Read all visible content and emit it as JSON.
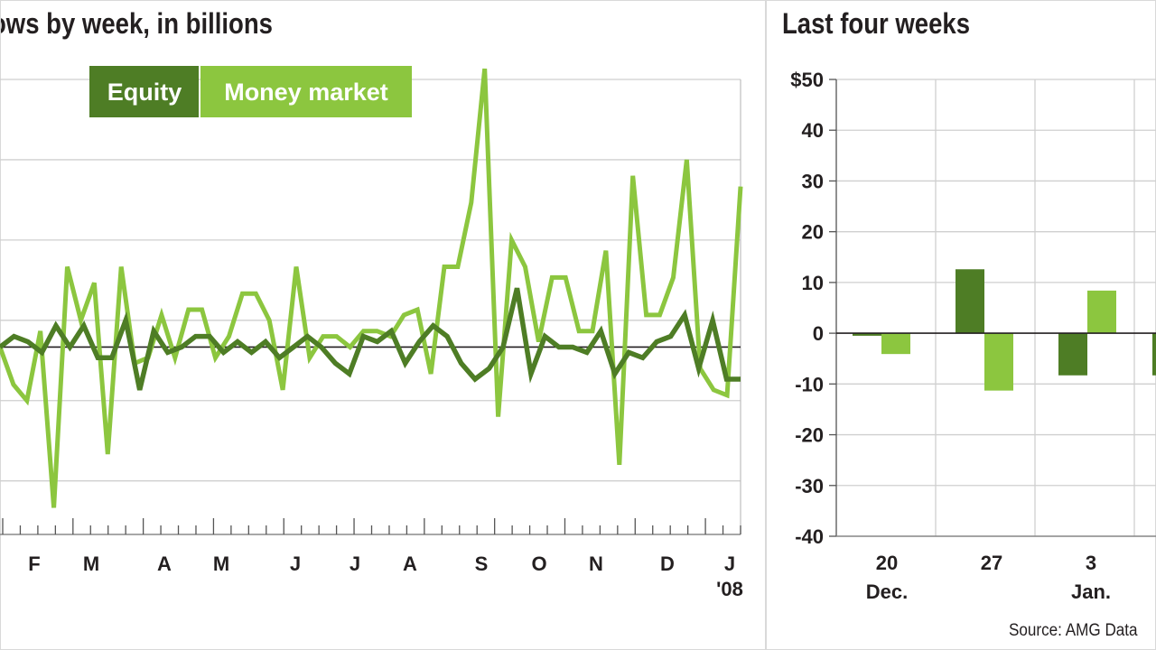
{
  "titles": {
    "left": "ows by week, in billions",
    "right": "Last four weeks"
  },
  "legend": {
    "equity": "Equity",
    "money_market": "Money market"
  },
  "source": "Source: AMG Data",
  "colors": {
    "equity": "#4e7d25",
    "money_market": "#8cc63f",
    "grid": "#cfcfcf",
    "zero": "#231f20",
    "text": "#231f20"
  },
  "chart_data": [
    {
      "type": "line",
      "title": "ows by week, in billions",
      "x_tick_labels": [
        "F",
        "M",
        "A",
        "M",
        "J",
        "J",
        "A",
        "S",
        "O",
        "N",
        "D",
        "J"
      ],
      "x_secondary_label": "'08",
      "y_tick_labels": [],
      "ylim": [
        -35,
        50
      ],
      "grid": true,
      "legend": "top-left",
      "series": [
        {
          "name": "Equity",
          "values": [
            0,
            2,
            1,
            -1,
            4,
            0,
            4,
            -2,
            -2,
            5,
            -8,
            3,
            -1,
            0,
            2,
            2,
            -1,
            1,
            -1,
            1,
            -2,
            0,
            2,
            0,
            -3,
            -5,
            2,
            1,
            3,
            -3,
            1,
            4,
            2,
            -3,
            -6,
            -4,
            0,
            11,
            -5,
            2,
            0,
            0,
            -1,
            3,
            -5,
            -1,
            -2,
            1,
            2,
            6,
            -4,
            5,
            -6,
            -6
          ]
        },
        {
          "name": "Money market",
          "values": [
            0,
            -7,
            -10,
            3,
            -30,
            15,
            5,
            12,
            -20,
            15,
            -3,
            -2,
            6,
            -2,
            7,
            7,
            -2,
            2,
            10,
            10,
            5,
            -8,
            15,
            -2,
            2,
            2,
            0,
            3,
            3,
            2,
            6,
            7,
            -5,
            15,
            15,
            27,
            52,
            -13,
            20,
            15,
            1,
            13,
            13,
            3,
            3,
            18,
            -22,
            32,
            6,
            6,
            13,
            35,
            -4,
            -8,
            -9,
            30
          ]
        }
      ]
    },
    {
      "type": "bar",
      "title": "Last four weeks",
      "categories": [
        "20",
        "27",
        "3",
        ""
      ],
      "category_sublabels": [
        "Dec.",
        "",
        "Jan.",
        ""
      ],
      "ylim": [
        -40,
        50
      ],
      "y_tick_labels": [
        "$50",
        "40",
        "30",
        "20",
        "10",
        "0",
        "-10",
        "-20",
        "-30",
        "-40"
      ],
      "grid": true,
      "series": [
        {
          "name": "Equity",
          "values": [
            -0.5,
            12.6,
            -8.3,
            -8.3
          ]
        },
        {
          "name": "Money market",
          "values": [
            -4.1,
            -11.3,
            8.4,
            null
          ]
        }
      ]
    }
  ]
}
